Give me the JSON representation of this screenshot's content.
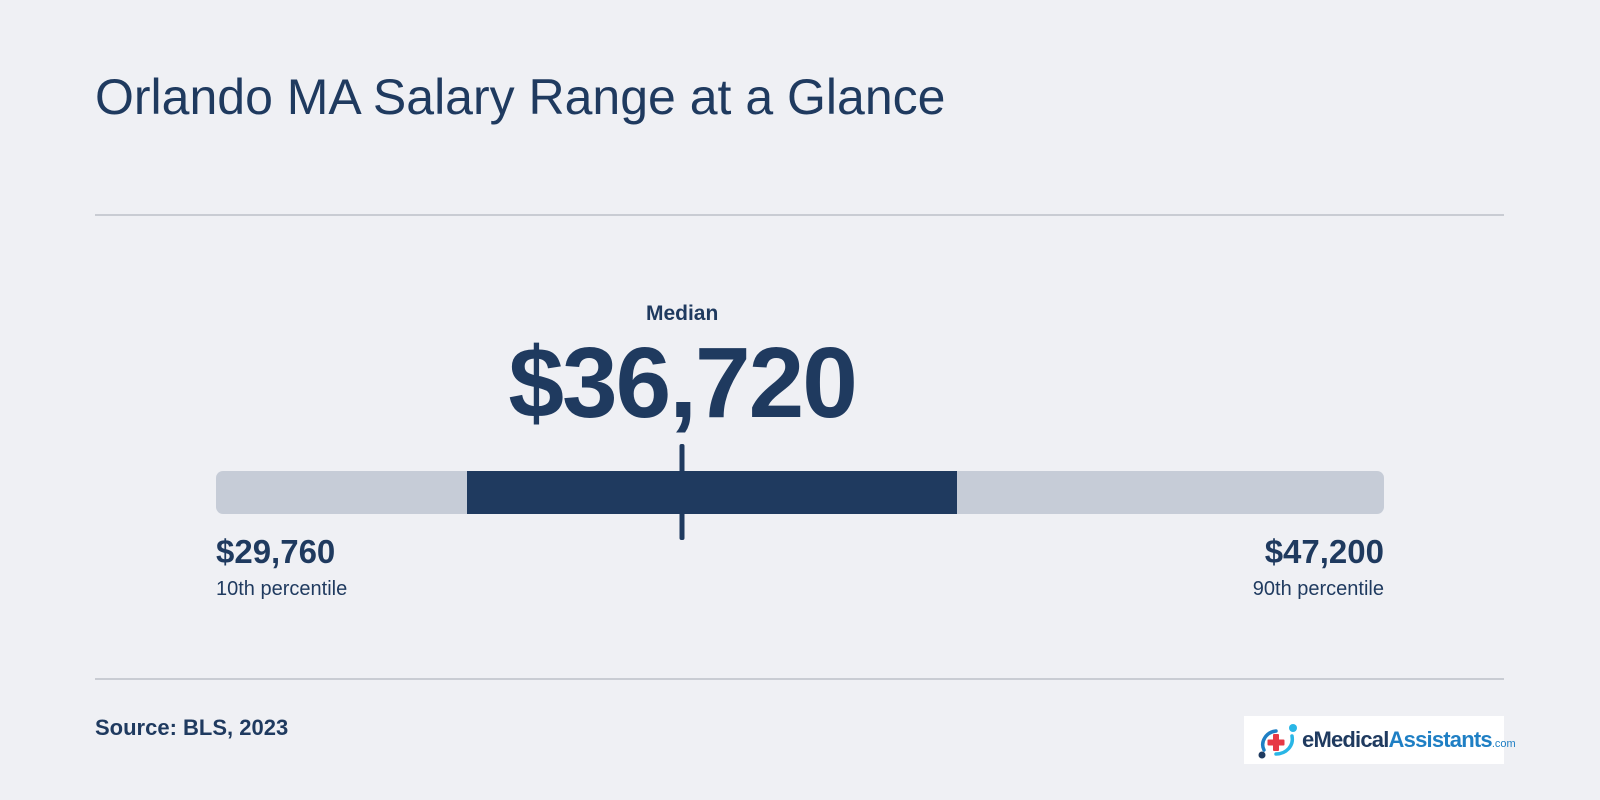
{
  "chart_data": {
    "type": "range",
    "title": "Orlando MA Salary Range at a Glance",
    "median": {
      "label": "Median",
      "value": 36720,
      "display": "$36,720"
    },
    "low": {
      "label": "10th percentile",
      "value": 29760,
      "display": "$29,760"
    },
    "high": {
      "label": "90th percentile",
      "value": 47200,
      "display": "$47,200"
    },
    "iqr": {
      "low": 33510,
      "high": 40820
    },
    "axis_range": [
      29760,
      47200
    ],
    "colors": {
      "track": "#c6ccd7",
      "highlight": "#1f3a5f",
      "text": "#1f3a5f",
      "background": "#eff0f4"
    }
  },
  "footer": {
    "source": "Source: BLS, 2023"
  },
  "logo": {
    "icon": "medical-cross-logo-icon",
    "part_e": "e",
    "part_medical": "Medical",
    "part_assistants": "Assistants",
    "part_com": ".com"
  }
}
